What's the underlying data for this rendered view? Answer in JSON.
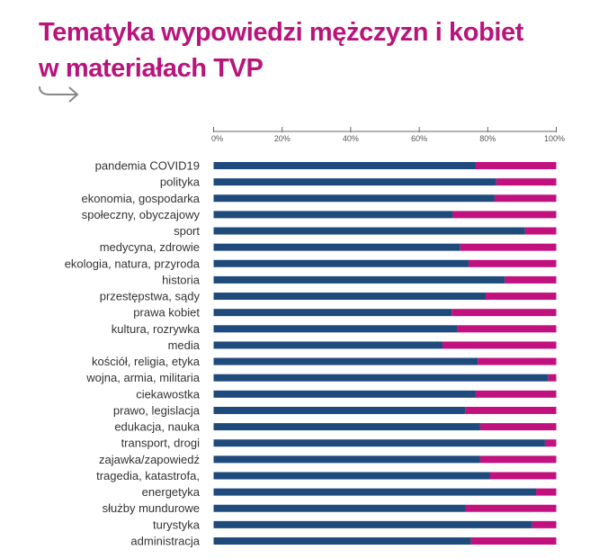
{
  "title_line1": "Tematyka wypowiedzi mężczyzn i kobiet",
  "title_line2": "w materiałach TVP",
  "icon": "hooked-arrow-right-icon",
  "chart_data": {
    "type": "bar",
    "orientation": "horizontal",
    "stacked": true,
    "normalized": true,
    "xlim": [
      0,
      100
    ],
    "xticks": [
      "0%",
      "20%",
      "40%",
      "60%",
      "80%",
      "100%"
    ],
    "colors": {
      "series1": "#1f4a7c",
      "series2": "#c1117f"
    },
    "categories": [
      "pandemia COVID19",
      "polityka",
      "ekonomia, gospodarka",
      "społeczny, obyczajowy",
      "sport",
      "medycyna, zdrowie",
      "ekologia, natura, przyroda",
      "historia",
      "przestępstwa, sądy",
      "prawa kobiet",
      "kultura, rozrywka",
      "media",
      "kościół, religia, etyka",
      "wojna, armia, militaria",
      "ciekawostka",
      "prawo, legislacja",
      "edukacja, nauka",
      "transport, drogi",
      "zajawka/zapowiedź",
      "tragedia, katastrofa,",
      "energetyka",
      "służby mundurowe",
      "turystyka",
      "administracja"
    ],
    "series": [
      {
        "values": [
          76.5,
          82.5,
          82.0,
          69.8,
          90.9,
          72.0,
          74.4,
          85.0,
          79.4,
          69.5,
          71.0,
          66.8,
          77.1,
          97.7,
          76.5,
          73.4,
          77.8,
          96.7,
          77.8,
          80.7,
          94.1,
          73.6,
          93.0,
          75.1
        ]
      },
      {
        "values": [
          23.5,
          17.5,
          18.0,
          30.2,
          9.1,
          28.0,
          25.6,
          15.0,
          20.6,
          30.5,
          29.0,
          33.2,
          22.9,
          2.3,
          23.5,
          26.6,
          22.2,
          3.3,
          22.2,
          19.3,
          5.9,
          26.4,
          7.0,
          24.9
        ]
      }
    ],
    "grid": false
  }
}
